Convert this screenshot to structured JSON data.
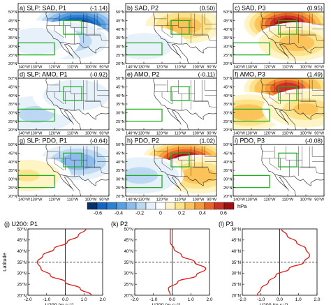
{
  "figure": {
    "colorbar": {
      "ticks": [
        "-0.6",
        "-0.4",
        "-0.2",
        "0",
        "0.2",
        "0.4",
        "0.6"
      ],
      "tick_values": [
        -0.6,
        -0.4,
        -0.2,
        0,
        0.2,
        0.4,
        0.6
      ],
      "unit": "hPa",
      "colors": [
        "#08306b",
        "#1565c0",
        "#2f7fd0",
        "#5aa0e0",
        "#8bbcec",
        "#bcd7f2",
        "#e6f0fa",
        "#ffffff",
        "#fff3c4",
        "#fde28a",
        "#fbc35a",
        "#f59a3a",
        "#e8632a",
        "#c9302a",
        "#9c1010"
      ]
    },
    "map_panels": [
      {
        "id": "a",
        "title": "a) SLP: SAD, P1",
        "value": "(-1.14)"
      },
      {
        "id": "b",
        "title": "b) SAD, P2",
        "value": "(0.50)"
      },
      {
        "id": "c",
        "title": "c) SAD, P3",
        "value": "(0.95)"
      },
      {
        "id": "d",
        "title": "d) SLP: AMO, P1",
        "value": "(-0.92)"
      },
      {
        "id": "e",
        "title": "e) AMO, P2",
        "value": "(-0.11)"
      },
      {
        "id": "f",
        "title": "f) AMO, P3",
        "value": "(1.49)"
      },
      {
        "id": "g",
        "title": "g) SLP: PDO, P1",
        "value": "(-0.64)"
      },
      {
        "id": "h",
        "title": "h) PDO, P2",
        "value": "(1.02)"
      },
      {
        "id": "i",
        "title": "i) PDO, P3",
        "value": "(-0.08)"
      }
    ],
    "map_axes": {
      "lat_labels": [
        "50°N",
        "45°N",
        "40°N",
        "35°N",
        "30°N",
        "25°N",
        "20°N"
      ],
      "lon_labels": [
        "140°W",
        "130°W",
        "120°W",
        "110°W",
        "100°W",
        "90°W"
      ]
    },
    "profile_axes": {
      "lat_labels": [
        "50°N",
        "45°N",
        "40°N",
        "35°N",
        "30°N",
        "25°N",
        "20°N"
      ],
      "x_ticks": [
        "-2.0",
        "-1.0",
        "0.0",
        "1.0",
        "2.0"
      ],
      "ylabel": "Latitude",
      "xlabel": "U200",
      "xunit": "(m s⁻¹)"
    }
  },
  "chart_data": [
    {
      "type": "map",
      "title": "a) SLP: SAD, P1",
      "annotation": "(-1.14)",
      "field": "SLP anomaly (hPa)",
      "xlim_lon": [
        -140,
        -90
      ],
      "ylim_lat": [
        20,
        50
      ],
      "anomalies": [
        {
          "lon": -107,
          "lat": 42,
          "amplitude": -0.7
        },
        {
          "lon": -112,
          "lat": 33,
          "amplitude": -0.25
        },
        {
          "lon": -130,
          "lat": 33,
          "amplitude": -0.1
        }
      ],
      "boxes": [
        {
          "lon": [
            -115,
            -105
          ],
          "lat": [
            37,
            45
          ]
        },
        {
          "lon": [
            -140,
            -120
          ],
          "lat": [
            25,
            32
          ]
        }
      ]
    },
    {
      "type": "map",
      "title": "b) SAD, P2",
      "annotation": "(0.50)",
      "field": "SLP anomaly (hPa)",
      "xlim_lon": [
        -140,
        -90
      ],
      "ylim_lat": [
        20,
        50
      ],
      "anomalies": [
        {
          "lon": -108,
          "lat": 42,
          "amplitude": 0.3
        },
        {
          "lon": -130,
          "lat": 30,
          "amplitude": -0.1
        }
      ],
      "boxes": [
        {
          "lon": [
            -115,
            -105
          ],
          "lat": [
            37,
            45
          ]
        },
        {
          "lon": [
            -140,
            -120
          ],
          "lat": [
            25,
            32
          ]
        }
      ]
    },
    {
      "type": "map",
      "title": "c) SAD, P3",
      "annotation": "(0.95)",
      "field": "SLP anomaly (hPa)",
      "xlim_lon": [
        -140,
        -90
      ],
      "ylim_lat": [
        20,
        50
      ],
      "anomalies": [
        {
          "lon": -110,
          "lat": 43,
          "amplitude": 0.65
        },
        {
          "lon": -105,
          "lat": 32,
          "amplitude": 0.3
        }
      ],
      "boxes": [
        {
          "lon": [
            -115,
            -105
          ],
          "lat": [
            37,
            45
          ]
        },
        {
          "lon": [
            -140,
            -120
          ],
          "lat": [
            25,
            32
          ]
        }
      ]
    },
    {
      "type": "map",
      "title": "d) SLP: AMO, P1",
      "annotation": "(-0.92)",
      "field": "SLP anomaly (hPa)",
      "xlim_lon": [
        -140,
        -90
      ],
      "ylim_lat": [
        20,
        50
      ],
      "anomalies": [
        {
          "lon": -130,
          "lat": 29,
          "amplitude": -0.2
        },
        {
          "lon": -108,
          "lat": 40,
          "amplitude": -0.15
        }
      ],
      "boxes": [
        {
          "lon": [
            -115,
            -105
          ],
          "lat": [
            37,
            45
          ]
        },
        {
          "lon": [
            -140,
            -120
          ],
          "lat": [
            25,
            32
          ]
        }
      ]
    },
    {
      "type": "map",
      "title": "e) AMO, P2",
      "annotation": "(-0.11)",
      "field": "SLP anomaly (hPa)",
      "xlim_lon": [
        -140,
        -90
      ],
      "ylim_lat": [
        20,
        50
      ],
      "anomalies": [],
      "boxes": [
        {
          "lon": [
            -115,
            -105
          ],
          "lat": [
            37,
            45
          ]
        },
        {
          "lon": [
            -140,
            -120
          ],
          "lat": [
            25,
            32
          ]
        }
      ]
    },
    {
      "type": "map",
      "title": "f) AMO, P3",
      "annotation": "(1.49)",
      "field": "SLP anomaly (hPa)",
      "xlim_lon": [
        -140,
        -90
      ],
      "ylim_lat": [
        20,
        50
      ],
      "anomalies": [
        {
          "lon": -110,
          "lat": 44,
          "amplitude": 0.6
        },
        {
          "lon": -132,
          "lat": 30,
          "amplitude": 0.3
        },
        {
          "lon": -100,
          "lat": 32,
          "amplitude": 0.25
        }
      ],
      "boxes": [
        {
          "lon": [
            -115,
            -105
          ],
          "lat": [
            37,
            45
          ]
        },
        {
          "lon": [
            -140,
            -120
          ],
          "lat": [
            25,
            32
          ]
        }
      ]
    },
    {
      "type": "map",
      "title": "g) SLP: PDO, P1",
      "annotation": "(-0.64)",
      "field": "SLP anomaly (hPa)",
      "xlim_lon": [
        -140,
        -90
      ],
      "ylim_lat": [
        20,
        50
      ],
      "anomalies": [
        {
          "lon": -107,
          "lat": 40,
          "amplitude": -0.35
        },
        {
          "lon": -135,
          "lat": 32,
          "amplitude": 0.15
        }
      ],
      "boxes": [
        {
          "lon": [
            -115,
            -105
          ],
          "lat": [
            37,
            45
          ]
        },
        {
          "lon": [
            -140,
            -120
          ],
          "lat": [
            25,
            32
          ]
        }
      ]
    },
    {
      "type": "map",
      "title": "h) PDO, P2",
      "annotation": "(1.02)",
      "field": "SLP anomaly (hPa)",
      "xlim_lon": [
        -140,
        -90
      ],
      "ylim_lat": [
        20,
        50
      ],
      "anomalies": [
        {
          "lon": -107,
          "lat": 41,
          "amplitude": 0.7
        },
        {
          "lon": -100,
          "lat": 32,
          "amplitude": 0.3
        },
        {
          "lon": -132,
          "lat": 32,
          "amplitude": -0.2
        }
      ],
      "boxes": [
        {
          "lon": [
            -115,
            -105
          ],
          "lat": [
            37,
            45
          ]
        },
        {
          "lon": [
            -140,
            -120
          ],
          "lat": [
            25,
            32
          ]
        }
      ]
    },
    {
      "type": "map",
      "title": "i) PDO, P3",
      "annotation": "(-0.08)",
      "field": "SLP anomaly (hPa)",
      "xlim_lon": [
        -140,
        -90
      ],
      "ylim_lat": [
        20,
        50
      ],
      "anomalies": [],
      "boxes": [
        {
          "lon": [
            -115,
            -105
          ],
          "lat": [
            37,
            45
          ]
        },
        {
          "lon": [
            -140,
            -120
          ],
          "lat": [
            25,
            32
          ]
        }
      ]
    },
    {
      "type": "line",
      "title": "(j) U200: P1",
      "xlabel": "U200",
      "xunit": "(m s⁻¹)",
      "ylabel": "Latitude",
      "xlim": [
        -2,
        2
      ],
      "ylim": [
        20,
        50
      ],
      "ref_lat": 35,
      "series": [
        {
          "x": [
            1.4,
            0.8,
            0.0,
            -0.8,
            -1.3,
            -1.5,
            -1.2,
            -0.6,
            0.1,
            0.7,
            1.1
          ],
          "y": [
            20,
            23,
            26,
            29,
            32,
            35,
            38,
            41,
            44,
            47,
            50
          ]
        }
      ]
    },
    {
      "type": "line",
      "title": "(k) P2",
      "xlabel": "U200",
      "xunit": "(m s⁻¹)",
      "ylabel": "Latitude",
      "xlim": [
        -2,
        2
      ],
      "ylim": [
        20,
        50
      ],
      "ref_lat": 35,
      "series": [
        {
          "x": [
            -0.1,
            -0.2,
            0.3,
            1.3,
            1.8,
            1.2,
            0.5,
            0.1,
            -0.1,
            -0.1,
            -0.1
          ],
          "y": [
            20,
            23,
            26,
            29,
            32,
            35,
            38,
            41,
            44,
            47,
            50
          ]
        }
      ]
    },
    {
      "type": "line",
      "title": "(l) P3",
      "xlabel": "U200",
      "xunit": "(m s⁻¹)",
      "ylabel": "Latitude",
      "xlim": [
        -2,
        2
      ],
      "ylim": [
        20,
        50
      ],
      "ref_lat": 35,
      "series": [
        {
          "x": [
            -1.2,
            -1.0,
            -0.6,
            -0.2,
            0.5,
            1.3,
            1.6,
            1.4,
            0.9,
            0.4,
            0.1
          ],
          "y": [
            20,
            23,
            26,
            29,
            32,
            35,
            38,
            41,
            44,
            47,
            50
          ]
        }
      ]
    }
  ]
}
